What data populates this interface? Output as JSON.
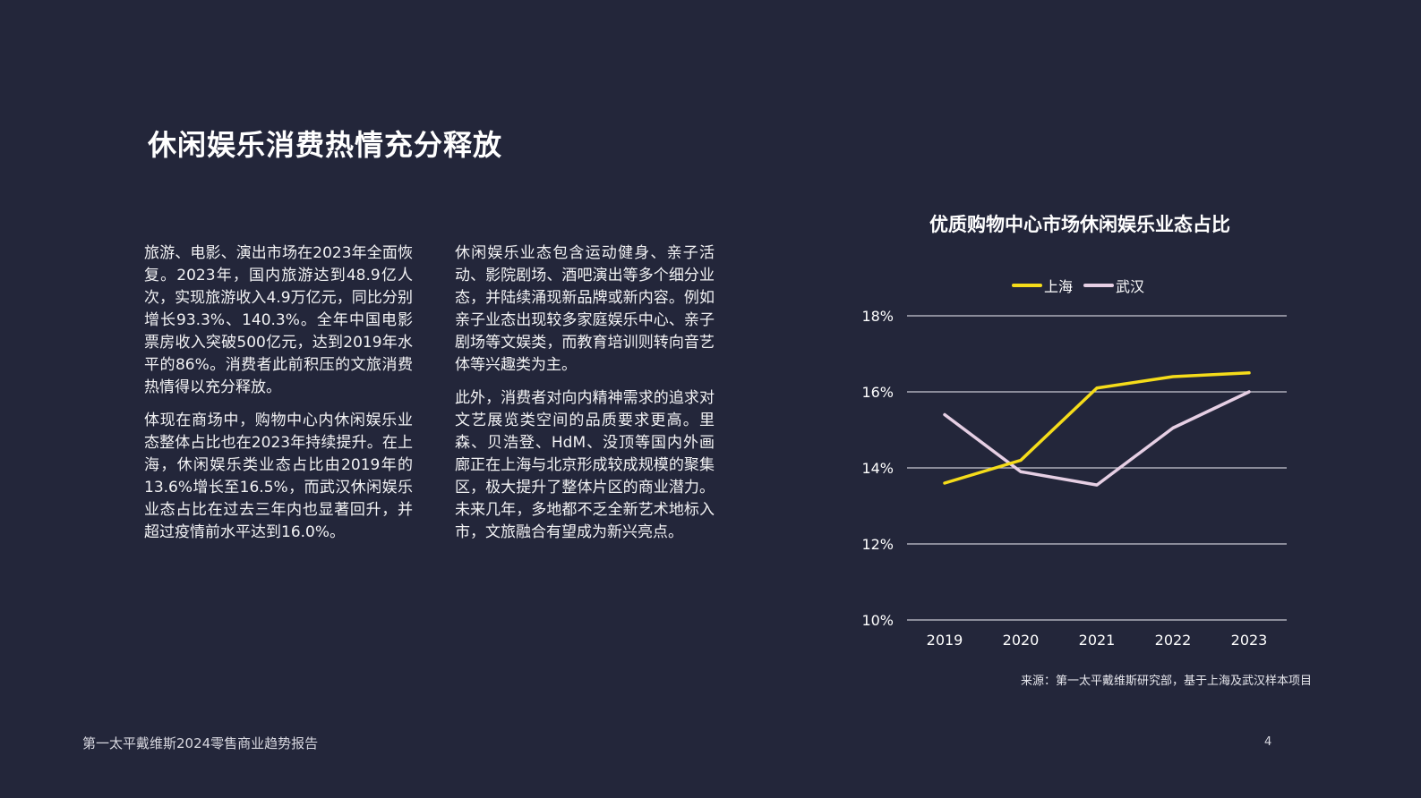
{
  "page": {
    "title": "休闲娱乐消费热情充分释放",
    "footer_text": "第一太平戴维斯2024零售商业趋势报告",
    "page_number": "4"
  },
  "text_columns": {
    "col1": [
      "旅游、电影、演出市场在2023年全面恢复。2023年，国内旅游达到48.9亿人次，实现旅游收入4.9万亿元，同比分别增长93.3%、140.3%。全年中国电影票房收入突破500亿元，达到2019年水平的86%。消费者此前积压的文旅消费热情得以充分释放。",
      "体现在商场中，购物中心内休闲娱乐业态整体占比也在2023年持续提升。在上海，休闲娱乐类业态占比由2019年的13.6%增长至16.5%，而武汉休闲娱乐业态占比在过去三年内也显著回升，并超过疫情前水平达到16.0%。"
    ],
    "col2": [
      "休闲娱乐业态包含运动健身、亲子活动、影院剧场、酒吧演出等多个细分业态，并陆续涌现新品牌或新内容。例如亲子业态出现较多家庭娱乐中心、亲子剧场等文娱类，而教育培训则转向音艺体等兴趣类为主。",
      "此外，消费者对向内精神需求的追求对文艺展览类空间的品质要求更高。里森、贝浩登、HdM、没顶等国内外画廊正在上海与北京形成较成规模的聚集区，极大提升了整体片区的商业潜力。未来几年，多地都不乏全新艺术地标入市，文旅融合有望成为新兴亮点。"
    ]
  },
  "chart_data": {
    "type": "line",
    "title": "优质购物中心市场休闲娱乐业态占比",
    "x": [
      "2019",
      "2020",
      "2021",
      "2022",
      "2023"
    ],
    "series": [
      {
        "name": "上海",
        "color": "#f5dc1a",
        "values": [
          13.6,
          14.2,
          16.1,
          16.4,
          16.5
        ]
      },
      {
        "name": "武汉",
        "color": "#e6cfe4",
        "values": [
          15.4,
          13.9,
          13.55,
          15.05,
          16.0
        ]
      }
    ],
    "ylim": [
      10,
      18
    ],
    "yticks": [
      10,
      12,
      14,
      16,
      18
    ],
    "ytick_labels": [
      "10%",
      "12%",
      "14%",
      "16%",
      "18%"
    ],
    "grid": true,
    "legend_position": "top-center",
    "source": "来源：第一太平戴维斯研究部，基于上海及武汉样本项目"
  }
}
